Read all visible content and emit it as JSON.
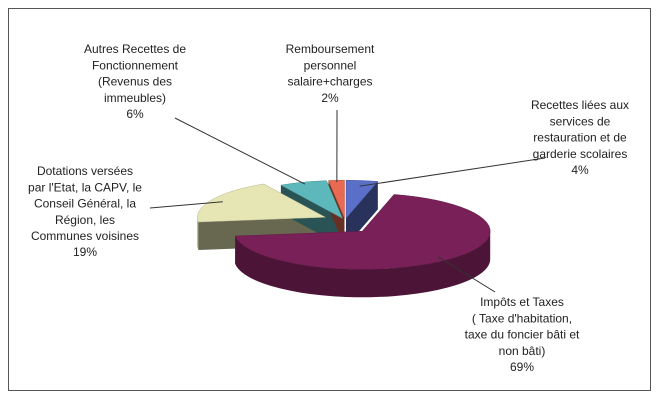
{
  "chart_data": {
    "type": "pie",
    "categories": [
      [
        "Recettes liées aux",
        "services de",
        "restauration et de",
        "garderie scolaires"
      ],
      [
        "Impôts et Taxes",
        "( Taxe d'habitation,",
        "taxe du foncier bâti et",
        "non bâti)"
      ],
      [
        "Dotations versées",
        "par l'Etat, la CAPV, le",
        "Conseil Général, la",
        "Région, les",
        "Communes voisines"
      ],
      [
        "Autres Recettes de",
        "Fonctionnement",
        "(Revenus des",
        "immeubles)"
      ],
      [
        "Remboursement",
        "personnel",
        "salaire+charges"
      ]
    ],
    "values": [
      4,
      69,
      19,
      6,
      2
    ],
    "value_labels": [
      "4%",
      "69%",
      "19%",
      "6%",
      "2%"
    ],
    "colors": [
      "#5a6fc8",
      "#7a2058",
      "#e6e6b4",
      "#5cb8ba",
      "#e86a52"
    ]
  }
}
